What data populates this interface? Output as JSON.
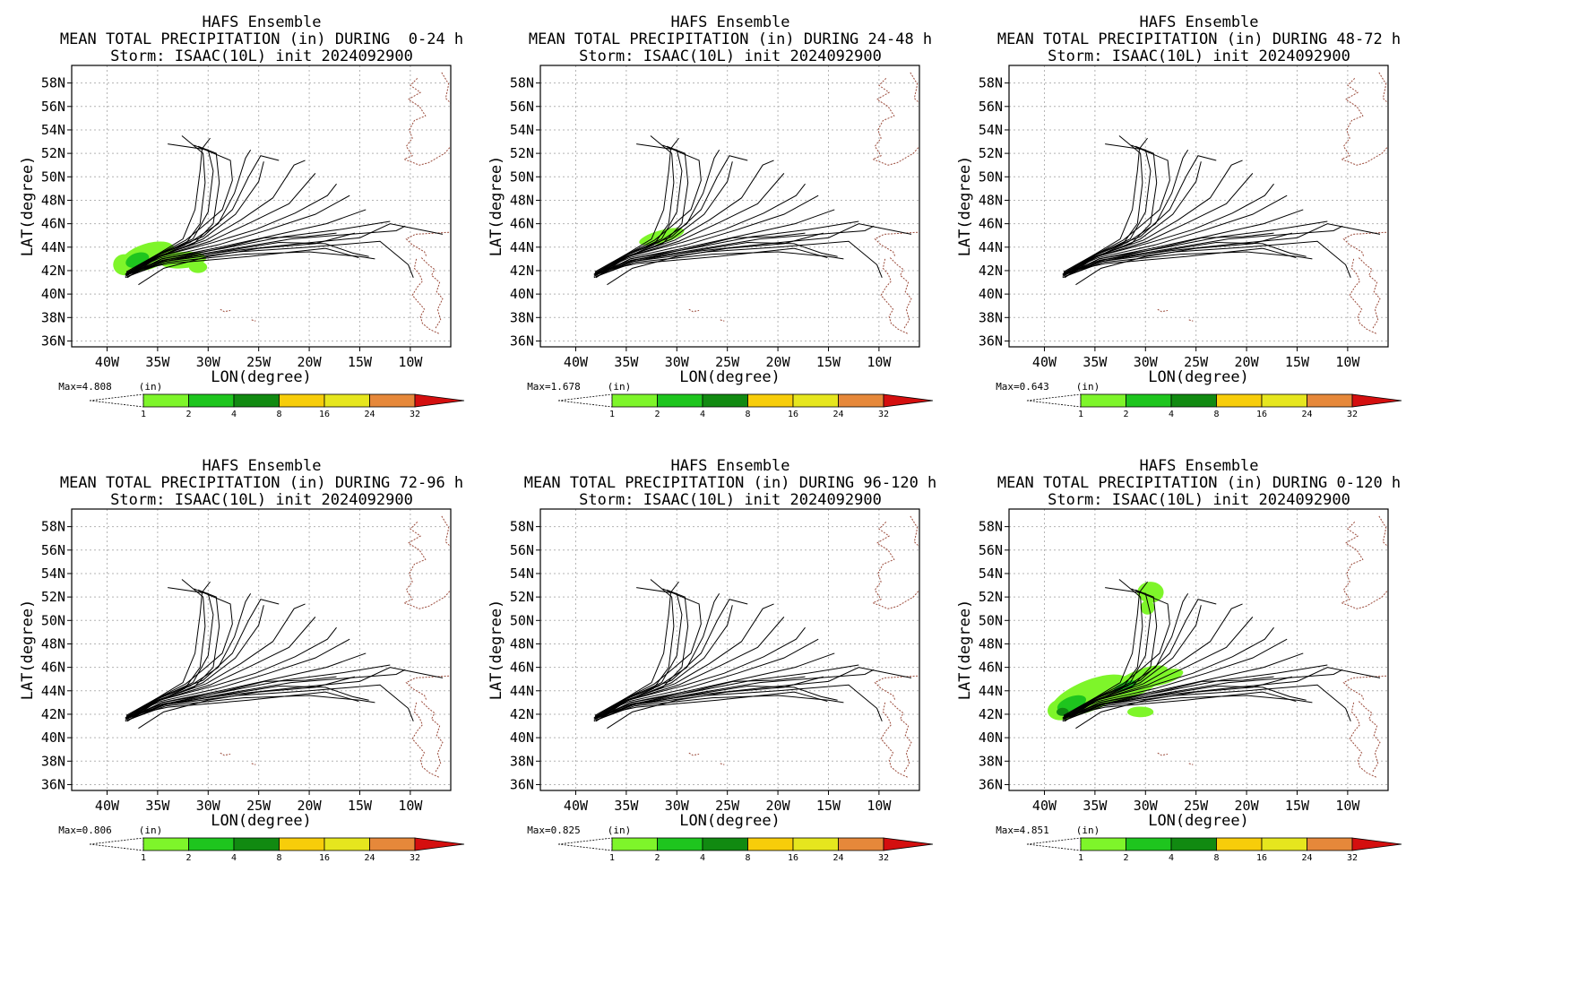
{
  "figure": {
    "suptitle_line1": "HAFS Ensemble",
    "storm_line": "Storm: ISAAC(10L) init 2024092900"
  },
  "colors": {
    "track": "#000000",
    "coast": "#9a4a3a",
    "grid": "#b4b4b4",
    "precip_light": "#7ef52a",
    "precip_medium": "#1ec51e",
    "precip_dark": "#118a11",
    "colorbar": [
      "#7ef52a",
      "#1ec51e",
      "#118a11",
      "#f7cd0a",
      "#e6e61e",
      "#e6883a",
      "#d40f0f"
    ]
  },
  "chart_data": [
    {
      "type": "heatmap",
      "title": "MEAN TOTAL PRECIPITATION (in) DURING  0-24 h",
      "xlabel": "LON(degree)",
      "ylabel": "LAT(degree)",
      "xticks": [
        "40W",
        "35W",
        "30W",
        "25W",
        "20W",
        "15W",
        "10W"
      ],
      "yticks": [
        "58N",
        "56N",
        "54N",
        "52N",
        "50N",
        "48N",
        "46N",
        "44N",
        "42N",
        "40N",
        "38N",
        "36N"
      ],
      "xlim": [
        -43.5,
        -6
      ],
      "ylim": [
        35.5,
        59.5
      ],
      "grid": true,
      "max_label": "Max=4.808",
      "units": "(in)",
      "colorbar_levels": [
        "1",
        "2",
        "4",
        "8",
        "16",
        "24",
        "32"
      ],
      "precip": [
        {
          "lon": -36,
          "lat": 43.2,
          "rx": 2.8,
          "ry": 1.1,
          "rot": -18,
          "level": 1
        },
        {
          "lon": -38.3,
          "lat": 42.5,
          "rx": 1.1,
          "ry": 0.9,
          "rot": 0,
          "level": 1
        },
        {
          "lon": -32.5,
          "lat": 42.9,
          "rx": 2.3,
          "ry": 0.7,
          "rot": -5,
          "level": 1
        },
        {
          "lon": -31,
          "lat": 42.3,
          "rx": 0.9,
          "ry": 0.5,
          "rot": 0,
          "level": 1
        },
        {
          "lon": -37,
          "lat": 42.9,
          "rx": 1.2,
          "ry": 0.6,
          "rot": -20,
          "level": 2
        }
      ]
    },
    {
      "type": "heatmap",
      "title": "MEAN TOTAL PRECIPITATION (in) DURING 24-48 h",
      "xlabel": "LON(degree)",
      "ylabel": "LAT(degree)",
      "xticks": [
        "40W",
        "35W",
        "30W",
        "25W",
        "20W",
        "15W",
        "10W"
      ],
      "yticks": [
        "58N",
        "56N",
        "54N",
        "52N",
        "50N",
        "48N",
        "46N",
        "44N",
        "42N",
        "40N",
        "38N",
        "36N"
      ],
      "xlim": [
        -43.5,
        -6
      ],
      "ylim": [
        35.5,
        59.5
      ],
      "grid": true,
      "max_label": "Max=1.678",
      "units": "(in)",
      "colorbar_levels": [
        "1",
        "2",
        "4",
        "8",
        "16",
        "24",
        "32"
      ],
      "precip": [
        {
          "lon": -31.5,
          "lat": 44.9,
          "rx": 2.3,
          "ry": 0.55,
          "rot": -15,
          "level": 1
        }
      ]
    },
    {
      "type": "heatmap",
      "title": "MEAN TOTAL PRECIPITATION (in) DURING 48-72 h",
      "xlabel": "LON(degree)",
      "ylabel": "LAT(degree)",
      "xticks": [
        "40W",
        "35W",
        "30W",
        "25W",
        "20W",
        "15W",
        "10W"
      ],
      "yticks": [
        "58N",
        "56N",
        "54N",
        "52N",
        "50N",
        "48N",
        "46N",
        "44N",
        "42N",
        "40N",
        "38N",
        "36N"
      ],
      "xlim": [
        -43.5,
        -6
      ],
      "ylim": [
        35.5,
        59.5
      ],
      "grid": true,
      "max_label": "Max=0.643",
      "units": "(in)",
      "colorbar_levels": [
        "1",
        "2",
        "4",
        "8",
        "16",
        "24",
        "32"
      ],
      "precip": []
    },
    {
      "type": "heatmap",
      "title": "MEAN TOTAL PRECIPITATION (in) DURING 72-96 h",
      "xlabel": "LON(degree)",
      "ylabel": "LAT(degree)",
      "xticks": [
        "40W",
        "35W",
        "30W",
        "25W",
        "20W",
        "15W",
        "10W"
      ],
      "yticks": [
        "58N",
        "56N",
        "54N",
        "52N",
        "50N",
        "48N",
        "46N",
        "44N",
        "42N",
        "40N",
        "38N",
        "36N"
      ],
      "xlim": [
        -43.5,
        -6
      ],
      "ylim": [
        35.5,
        59.5
      ],
      "grid": true,
      "max_label": "Max=0.806",
      "units": "(in)",
      "colorbar_levels": [
        "1",
        "2",
        "4",
        "8",
        "16",
        "24",
        "32"
      ],
      "precip": []
    },
    {
      "type": "heatmap",
      "title": "MEAN TOTAL PRECIPITATION (in) DURING 96-120 h",
      "xlabel": "LON(degree)",
      "ylabel": "LAT(degree)",
      "xticks": [
        "40W",
        "35W",
        "30W",
        "25W",
        "20W",
        "15W",
        "10W"
      ],
      "yticks": [
        "58N",
        "56N",
        "54N",
        "52N",
        "50N",
        "48N",
        "46N",
        "44N",
        "42N",
        "40N",
        "38N",
        "36N"
      ],
      "xlim": [
        -43.5,
        -6
      ],
      "ylim": [
        35.5,
        59.5
      ],
      "grid": true,
      "max_label": "Max=0.825",
      "units": "(in)",
      "colorbar_levels": [
        "1",
        "2",
        "4",
        "8",
        "16",
        "24",
        "32"
      ],
      "precip": []
    },
    {
      "type": "heatmap",
      "title": "MEAN TOTAL PRECIPITATION (in) DURING 0-120 h",
      "xlabel": "LON(degree)",
      "ylabel": "LAT(degree)",
      "xticks": [
        "40W",
        "35W",
        "30W",
        "25W",
        "20W",
        "15W",
        "10W"
      ],
      "yticks": [
        "58N",
        "56N",
        "54N",
        "52N",
        "50N",
        "48N",
        "46N",
        "44N",
        "42N",
        "40N",
        "38N",
        "36N"
      ],
      "xlim": [
        -43.5,
        -6
      ],
      "ylim": [
        35.5,
        59.5
      ],
      "grid": true,
      "max_label": "Max=4.851",
      "units": "(in)",
      "colorbar_levels": [
        "1",
        "2",
        "4",
        "8",
        "16",
        "24",
        "32"
      ],
      "precip": [
        {
          "lon": -35.5,
          "lat": 43.6,
          "rx": 4.1,
          "ry": 1.3,
          "rot": -22,
          "level": 1
        },
        {
          "lon": -31,
          "lat": 44.6,
          "rx": 3.5,
          "ry": 1.0,
          "rot": -25,
          "level": 1
        },
        {
          "lon": -28.5,
          "lat": 45.1,
          "rx": 2.3,
          "ry": 0.6,
          "rot": -15,
          "level": 1
        },
        {
          "lon": -30.5,
          "lat": 42.2,
          "rx": 1.3,
          "ry": 0.45,
          "rot": 0,
          "level": 1
        },
        {
          "lon": -29.5,
          "lat": 52.4,
          "rx": 1.3,
          "ry": 0.9,
          "rot": 0,
          "level": 1
        },
        {
          "lon": -29.8,
          "lat": 51.1,
          "rx": 0.7,
          "ry": 0.6,
          "rot": 0,
          "level": 1
        },
        {
          "lon": -38.3,
          "lat": 42.4,
          "rx": 1.4,
          "ry": 0.9,
          "rot": -10,
          "level": 1
        },
        {
          "lon": -37.3,
          "lat": 42.9,
          "rx": 1.5,
          "ry": 0.6,
          "rot": -20,
          "level": 2
        },
        {
          "lon": -32,
          "lat": 44.4,
          "rx": 1.2,
          "ry": 0.35,
          "rot": -20,
          "level": 2
        },
        {
          "lon": -38.2,
          "lat": 42.2,
          "rx": 0.6,
          "ry": 0.35,
          "rot": 0,
          "level": 3
        }
      ]
    }
  ],
  "tracks": [
    [
      [
        -38,
        41.6
      ],
      [
        -35,
        43.3
      ],
      [
        -31.8,
        44.4
      ],
      [
        -29,
        46
      ],
      [
        -27.4,
        48.6
      ],
      [
        -26.3,
        51.6
      ],
      [
        -25.8,
        52.3
      ]
    ],
    [
      [
        -38,
        41.8
      ],
      [
        -35,
        43.4
      ],
      [
        -32.5,
        44.7
      ],
      [
        -31.3,
        47.2
      ],
      [
        -30.8,
        50.5
      ],
      [
        -30.6,
        52.4
      ],
      [
        -29.8,
        53.3
      ]
    ],
    [
      [
        -38.2,
        41.5
      ],
      [
        -35,
        43.1
      ],
      [
        -32.3,
        44.2
      ],
      [
        -30.8,
        46
      ],
      [
        -30.3,
        49.5
      ],
      [
        -30.5,
        52
      ],
      [
        -32.6,
        53.5
      ]
    ],
    [
      [
        -38.1,
        41.7
      ],
      [
        -35,
        43.3
      ],
      [
        -31.5,
        44.7
      ],
      [
        -30,
        47
      ],
      [
        -29.5,
        50.5
      ],
      [
        -30,
        52.3
      ],
      [
        -34,
        52.8
      ]
    ],
    [
      [
        -38,
        41.6
      ],
      [
        -35,
        43.2
      ],
      [
        -31.4,
        44.3
      ],
      [
        -29.5,
        46
      ],
      [
        -28.9,
        49.5
      ],
      [
        -29.2,
        52
      ],
      [
        -31,
        52.6
      ]
    ],
    [
      [
        -38.1,
        41.9
      ],
      [
        -35,
        43.4
      ],
      [
        -30.5,
        44.9
      ],
      [
        -27.6,
        47.2
      ],
      [
        -26,
        50
      ],
      [
        -24.8,
        51.8
      ],
      [
        -23,
        51.4
      ]
    ],
    [
      [
        -38,
        41.4
      ],
      [
        -35,
        43.1
      ],
      [
        -30.5,
        44.7
      ],
      [
        -27.3,
        46.8
      ],
      [
        -25,
        49.6
      ],
      [
        -24.5,
        51.3
      ]
    ],
    [
      [
        -37.9,
        41.7
      ],
      [
        -35,
        43.2
      ],
      [
        -30.2,
        44.6
      ],
      [
        -26.8,
        46.3
      ],
      [
        -23.6,
        48.2
      ],
      [
        -21.5,
        51
      ],
      [
        -20.4,
        51.4
      ]
    ],
    [
      [
        -38.2,
        41.6
      ],
      [
        -34.8,
        43.2
      ],
      [
        -29.8,
        44.5
      ],
      [
        -25.8,
        46.1
      ],
      [
        -22,
        47.7
      ],
      [
        -19.4,
        50.3
      ]
    ],
    [
      [
        -38,
        41.6
      ],
      [
        -34.8,
        43.2
      ],
      [
        -29.5,
        44.4
      ],
      [
        -25.3,
        45.5
      ],
      [
        -21.4,
        46.9
      ],
      [
        -18.2,
        48.4
      ],
      [
        -17.3,
        49.4
      ]
    ],
    [
      [
        -38.1,
        41.8
      ],
      [
        -34.7,
        43.1
      ],
      [
        -29,
        44.2
      ],
      [
        -24,
        45.5
      ],
      [
        -19.4,
        46.8
      ],
      [
        -16,
        48.4
      ]
    ],
    [
      [
        -37.9,
        41.5
      ],
      [
        -34.6,
        43
      ],
      [
        -28.8,
        44
      ],
      [
        -23,
        45.1
      ],
      [
        -18.3,
        46
      ],
      [
        -14.4,
        47.2
      ]
    ],
    [
      [
        -38,
        41.6
      ],
      [
        -34.6,
        43
      ],
      [
        -28.5,
        43.9
      ],
      [
        -22.5,
        44.9
      ],
      [
        -17,
        45.5
      ],
      [
        -12,
        46.2
      ]
    ],
    [
      [
        -38.2,
        41.7
      ],
      [
        -34.5,
        42.9
      ],
      [
        -28,
        43.8
      ],
      [
        -21.8,
        44.7
      ],
      [
        -16,
        45.1
      ],
      [
        -11.4,
        45.4
      ],
      [
        -10.5,
        45.8
      ]
    ],
    [
      [
        -37.9,
        41.8
      ],
      [
        -34.4,
        42.9
      ],
      [
        -27.5,
        43.7
      ],
      [
        -21,
        44.3
      ],
      [
        -15,
        44.8
      ],
      [
        -12,
        46
      ],
      [
        -6.8,
        45.1
      ]
    ],
    [
      [
        -38.1,
        41.6
      ],
      [
        -34.3,
        42.8
      ],
      [
        -27,
        43.6
      ],
      [
        -20,
        44
      ],
      [
        -13,
        44.5
      ],
      [
        -10.2,
        42.5
      ],
      [
        -9.7,
        41.4
      ]
    ],
    [
      [
        -38,
        41.5
      ],
      [
        -34.2,
        42.7
      ],
      [
        -26.5,
        43.4
      ],
      [
        -20,
        43.6
      ],
      [
        -15,
        43.2
      ],
      [
        -13.5,
        43
      ]
    ],
    [
      [
        -37.8,
        41.9
      ],
      [
        -34,
        42.6
      ],
      [
        -26,
        43.2
      ],
      [
        -18.4,
        43.9
      ],
      [
        -15.1,
        43.1
      ]
    ],
    [
      [
        -38.2,
        41.4
      ],
      [
        -34.3,
        42.8
      ],
      [
        -27.4,
        43.8
      ],
      [
        -23,
        44.4
      ],
      [
        -18.4,
        44.3
      ],
      [
        -15.7,
        43.5
      ],
      [
        -14.1,
        43.2
      ]
    ],
    [
      [
        -37.8,
        41.7
      ],
      [
        -34.2,
        42.9
      ],
      [
        -28.2,
        44
      ],
      [
        -24.4,
        44.8
      ],
      [
        -20.3,
        44.9
      ],
      [
        -17.3,
        45.2
      ]
    ],
    [
      [
        -36.9,
        40.8
      ],
      [
        -34.4,
        42.2
      ],
      [
        -30,
        43.2
      ],
      [
        -25,
        43.9
      ],
      [
        -19.4,
        44.3
      ],
      [
        -15.5,
        45.2
      ]
    ],
    [
      [
        -38.1,
        41.8
      ],
      [
        -34.9,
        43.4
      ],
      [
        -32.2,
        44.6
      ],
      [
        -30.5,
        45.8
      ],
      [
        -28.6,
        47.2
      ],
      [
        -27.6,
        49.7
      ],
      [
        -27.8,
        51.4
      ],
      [
        -31.4,
        52.7
      ]
    ]
  ],
  "coast": [
    [
      [
        -9.3,
        58.4
      ],
      [
        -10,
        57.8
      ],
      [
        -9,
        57.2
      ],
      [
        -10.2,
        56.6
      ],
      [
        -9.1,
        56
      ],
      [
        -8.5,
        55.2
      ],
      [
        -9.6,
        54.8
      ],
      [
        -10.1,
        54
      ],
      [
        -9.8,
        53.3
      ],
      [
        -10.4,
        52.6
      ],
      [
        -9.8,
        51.8
      ],
      [
        -10.6,
        51.5
      ],
      [
        -9.1,
        51
      ],
      [
        -8.2,
        51.2
      ],
      [
        -7.4,
        51.6
      ],
      [
        -6.6,
        52
      ],
      [
        -6.1,
        52.5
      ]
    ],
    [
      [
        -6.9,
        58.9
      ],
      [
        -6.2,
        57.9
      ],
      [
        -6.5,
        56.7
      ],
      [
        -5.9,
        56.2
      ],
      [
        -5.6,
        55.4
      ],
      [
        -5.1,
        54.9
      ],
      [
        -4.5,
        54.3
      ],
      [
        -4,
        53.6
      ],
      [
        -4.3,
        52.9
      ],
      [
        -5,
        52.2
      ],
      [
        -5.5,
        51.7
      ],
      [
        -4.9,
        51.2
      ],
      [
        -3.4,
        50.8
      ],
      [
        -2.6,
        50.4
      ]
    ],
    [
      [
        -1.6,
        46
      ],
      [
        -5.5,
        45.3
      ],
      [
        -9.5,
        45.1
      ],
      [
        -10.4,
        44.7
      ],
      [
        -9.8,
        44.2
      ],
      [
        -8.6,
        43.6
      ],
      [
        -8.4,
        43.2
      ]
    ],
    [
      [
        -9.4,
        43
      ],
      [
        -9.6,
        42.2
      ],
      [
        -9.1,
        41.7
      ],
      [
        -8.8,
        41.1
      ],
      [
        -9.3,
        40.6
      ],
      [
        -9.8,
        39.9
      ],
      [
        -9.1,
        39.2
      ],
      [
        -8.6,
        38.7
      ],
      [
        -9,
        38.1
      ],
      [
        -8.8,
        37.5
      ],
      [
        -8.1,
        37
      ],
      [
        -7.1,
        36.6
      ]
    ],
    [
      [
        -8.9,
        43.1
      ],
      [
        -8.2,
        42.5
      ],
      [
        -7.6,
        42.1
      ],
      [
        -7.9,
        41.6
      ],
      [
        -7.1,
        41
      ],
      [
        -7.4,
        40.2
      ],
      [
        -6.8,
        39.6
      ],
      [
        -7.3,
        38.7
      ],
      [
        -7,
        37.8
      ],
      [
        -7.5,
        37.1
      ]
    ],
    [
      [
        -28.8,
        38.7
      ],
      [
        -28.4,
        38.5
      ],
      [
        -27.8,
        38.6
      ]
    ],
    [
      [
        -25.7,
        37.8
      ],
      [
        -25.3,
        37.7
      ]
    ],
    [
      [
        -4,
        48.3
      ],
      [
        -3.3,
        48.6
      ],
      [
        -2.6,
        48.4
      ],
      [
        -1.6,
        48.7
      ],
      [
        -0.5,
        49.3
      ],
      [
        0.3,
        49.6
      ],
      [
        1.6,
        50.2
      ]
    ]
  ]
}
